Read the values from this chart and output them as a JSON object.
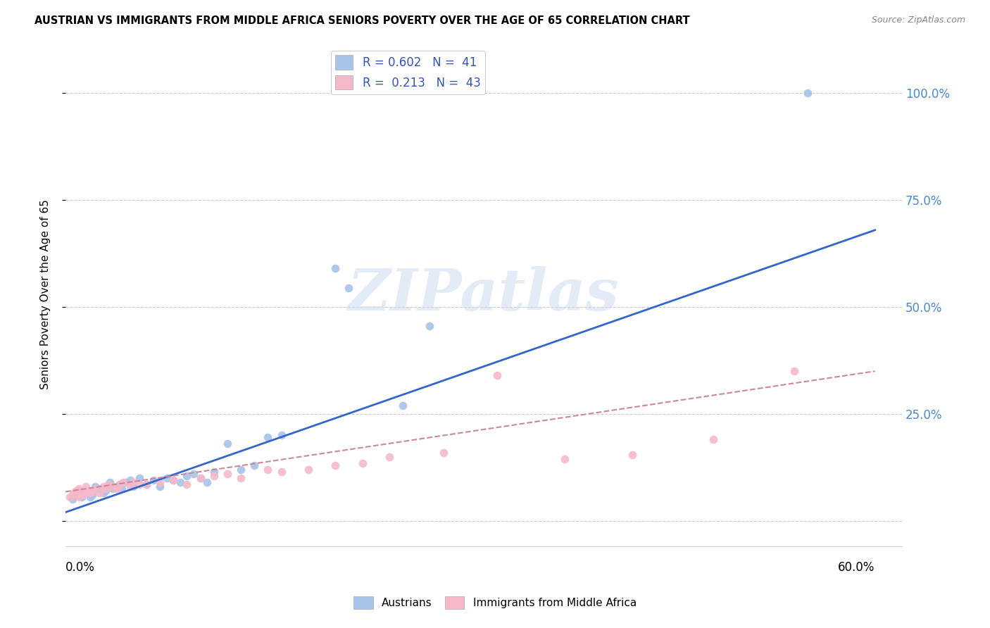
{
  "title": "AUSTRIAN VS IMMIGRANTS FROM MIDDLE AFRICA SENIORS POVERTY OVER THE AGE OF 65 CORRELATION CHART",
  "source": "Source: ZipAtlas.com",
  "ylabel": "Seniors Poverty Over the Age of 65",
  "xlim": [
    0.0,
    0.62
  ],
  "ylim": [
    -0.06,
    1.12
  ],
  "yticks": [
    0.0,
    0.25,
    0.5,
    0.75,
    1.0
  ],
  "ytick_labels": [
    "",
    "25.0%",
    "50.0%",
    "75.0%",
    "100.0%"
  ],
  "xticks": [
    0.0,
    0.1,
    0.2,
    0.3,
    0.4,
    0.5,
    0.6
  ],
  "legend_r1_label": "R = 0.602   N =  41",
  "legend_r2_label": "R =  0.213   N =  43",
  "austrians_color": "#a8c4e8",
  "immigrants_color": "#f5b8c8",
  "trendline_austrians_color": "#3366cc",
  "trendline_immigrants_color": "#cc8899",
  "watermark": "ZIPatlas",
  "background_color": "#ffffff",
  "grid_color": "#cccccc",
  "austrians_x": [
    0.005,
    0.008,
    0.01,
    0.012,
    0.015,
    0.018,
    0.02,
    0.022,
    0.025,
    0.028,
    0.03,
    0.033,
    0.035,
    0.038,
    0.04,
    0.042,
    0.045,
    0.048,
    0.05,
    0.055,
    0.06,
    0.065,
    0.07,
    0.075,
    0.08,
    0.085,
    0.09,
    0.095,
    0.1,
    0.105,
    0.11,
    0.12,
    0.13,
    0.14,
    0.15,
    0.16,
    0.2,
    0.21,
    0.25,
    0.27,
    0.55
  ],
  "austrians_y": [
    0.05,
    0.06,
    0.07,
    0.055,
    0.065,
    0.055,
    0.06,
    0.08,
    0.075,
    0.065,
    0.07,
    0.09,
    0.075,
    0.08,
    0.085,
    0.075,
    0.09,
    0.095,
    0.08,
    0.1,
    0.085,
    0.095,
    0.08,
    0.1,
    0.095,
    0.09,
    0.105,
    0.11,
    0.1,
    0.09,
    0.115,
    0.18,
    0.12,
    0.13,
    0.195,
    0.2,
    0.59,
    0.545,
    0.27,
    0.455,
    1.0
  ],
  "immigrants_x": [
    0.003,
    0.005,
    0.006,
    0.008,
    0.01,
    0.01,
    0.012,
    0.015,
    0.015,
    0.018,
    0.02,
    0.022,
    0.025,
    0.028,
    0.03,
    0.032,
    0.035,
    0.038,
    0.04,
    0.043,
    0.048,
    0.05,
    0.055,
    0.06,
    0.07,
    0.08,
    0.09,
    0.1,
    0.11,
    0.12,
    0.13,
    0.15,
    0.16,
    0.18,
    0.2,
    0.22,
    0.24,
    0.28,
    0.32,
    0.37,
    0.42,
    0.48,
    0.54
  ],
  "immigrants_y": [
    0.055,
    0.06,
    0.065,
    0.07,
    0.055,
    0.075,
    0.06,
    0.065,
    0.08,
    0.065,
    0.07,
    0.075,
    0.065,
    0.08,
    0.075,
    0.085,
    0.08,
    0.075,
    0.085,
    0.09,
    0.08,
    0.09,
    0.085,
    0.085,
    0.09,
    0.095,
    0.085,
    0.1,
    0.105,
    0.11,
    0.1,
    0.12,
    0.115,
    0.12,
    0.13,
    0.135,
    0.15,
    0.16,
    0.34,
    0.145,
    0.155,
    0.19,
    0.35
  ],
  "trendline_a_x0": 0.0,
  "trendline_a_y0": 0.02,
  "trendline_a_x1": 0.6,
  "trendline_a_y1": 0.68,
  "trendline_i_x0": 0.0,
  "trendline_i_y0": 0.068,
  "trendline_i_x1": 0.6,
  "trendline_i_y1": 0.35
}
